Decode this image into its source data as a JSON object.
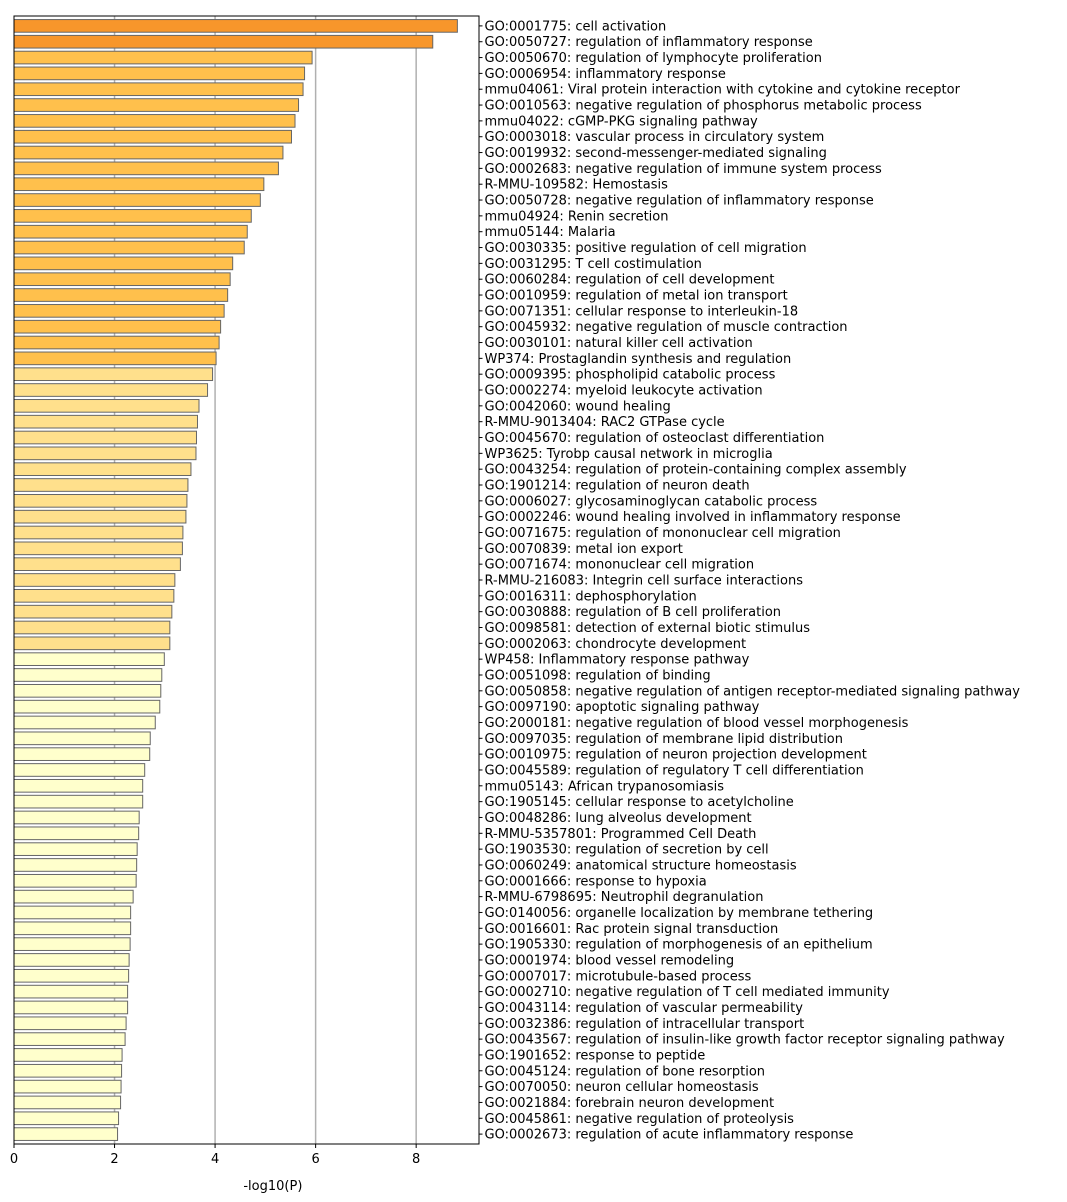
{
  "chart_data": {
    "type": "bar",
    "orientation": "horizontal",
    "xlabel": "-log10(P)",
    "ylabel": "",
    "title": "",
    "xlim": [
      0,
      9.25
    ],
    "xticks": [
      0,
      2,
      4,
      6,
      8
    ],
    "grid": "vertical-major",
    "legend": "none",
    "bar_edge_color": "#666666",
    "color_levels": {
      "top": "#F7962B",
      "high": "#FFC04C",
      "mid": "#FFE08C",
      "low": "#FFFFCC"
    },
    "categories": [
      "GO:0001775: cell activation",
      "GO:0050727: regulation of inflammatory response",
      "GO:0050670: regulation of lymphocyte proliferation",
      "GO:0006954: inflammatory response",
      "mmu04061: Viral protein interaction with cytokine and cytokine receptor",
      "GO:0010563: negative regulation of phosphorus metabolic process",
      "mmu04022: cGMP-PKG signaling pathway",
      "GO:0003018: vascular process in circulatory system",
      "GO:0019932: second-messenger-mediated signaling",
      "GO:0002683: negative regulation of immune system process",
      "R-MMU-109582: Hemostasis",
      "GO:0050728: negative regulation of inflammatory response",
      "mmu04924: Renin secretion",
      "mmu05144: Malaria",
      "GO:0030335: positive regulation of cell migration",
      "GO:0031295: T cell costimulation",
      "GO:0060284: regulation of cell development",
      "GO:0010959: regulation of metal ion transport",
      "GO:0071351: cellular response to interleukin-18",
      "GO:0045932: negative regulation of muscle contraction",
      "GO:0030101: natural killer cell activation",
      "WP374: Prostaglandin synthesis and regulation",
      "GO:0009395: phospholipid catabolic process",
      "GO:0002274: myeloid leukocyte activation",
      "GO:0042060: wound healing",
      "R-MMU-9013404: RAC2 GTPase cycle",
      "GO:0045670: regulation of osteoclast differentiation",
      "WP3625: Tyrobp causal network in microglia",
      "GO:0043254: regulation of protein-containing complex assembly",
      "GO:1901214: regulation of neuron death",
      "GO:0006027: glycosaminoglycan catabolic process",
      "GO:0002246: wound healing involved in inflammatory response",
      "GO:0071675: regulation of mononuclear cell migration",
      "GO:0070839: metal ion export",
      "GO:0071674: mononuclear cell migration",
      "R-MMU-216083: Integrin cell surface interactions",
      "GO:0016311: dephosphorylation",
      "GO:0030888: regulation of B cell proliferation",
      "GO:0098581: detection of external biotic stimulus",
      "GO:0002063: chondrocyte development",
      "WP458: Inflammatory response pathway",
      "GO:0051098: regulation of binding",
      "GO:0050858: negative regulation of antigen receptor-mediated signaling pathway",
      "GO:0097190: apoptotic signaling pathway",
      "GO:2000181: negative regulation of blood vessel morphogenesis",
      "GO:0097035: regulation of membrane lipid distribution",
      "GO:0010975: regulation of neuron projection development",
      "GO:0045589: regulation of regulatory T cell differentiation",
      "mmu05143: African trypanosomiasis",
      "GO:1905145: cellular response to acetylcholine",
      "GO:0048286: lung alveolus development",
      "R-MMU-5357801: Programmed Cell Death",
      "GO:1903530: regulation of secretion by cell",
      "GO:0060249: anatomical structure homeostasis",
      "GO:0001666: response to hypoxia",
      "R-MMU-6798695: Neutrophil degranulation",
      "GO:0140056: organelle localization by membrane tethering",
      "GO:0016601: Rac protein signal transduction",
      "GO:1905330: regulation of morphogenesis of an epithelium",
      "GO:0001974: blood vessel remodeling",
      "GO:0007017: microtubule-based process",
      "GO:0002710: negative regulation of T cell mediated immunity",
      "GO:0043114: regulation of vascular permeability",
      "GO:0032386: regulation of intracellular transport",
      "GO:0043567: regulation of insulin-like growth factor receptor signaling pathway",
      "GO:1901652: response to peptide",
      "GO:0045124: regulation of bone resorption",
      "GO:0070050: neuron cellular homeostasis",
      "GO:0021884: forebrain neuron development",
      "GO:0045861: negative regulation of proteolysis",
      "GO:0002673: regulation of acute inflammatory response"
    ],
    "values": [
      8.82,
      8.33,
      5.93,
      5.78,
      5.75,
      5.66,
      5.59,
      5.52,
      5.35,
      5.26,
      4.97,
      4.9,
      4.72,
      4.64,
      4.58,
      4.35,
      4.3,
      4.25,
      4.18,
      4.11,
      4.08,
      4.02,
      3.95,
      3.85,
      3.68,
      3.65,
      3.63,
      3.62,
      3.52,
      3.46,
      3.44,
      3.42,
      3.36,
      3.35,
      3.31,
      3.2,
      3.18,
      3.14,
      3.1,
      3.1,
      2.99,
      2.94,
      2.92,
      2.9,
      2.81,
      2.71,
      2.7,
      2.6,
      2.56,
      2.56,
      2.49,
      2.48,
      2.45,
      2.44,
      2.43,
      2.37,
      2.32,
      2.32,
      2.31,
      2.29,
      2.28,
      2.26,
      2.26,
      2.23,
      2.21,
      2.15,
      2.14,
      2.13,
      2.12,
      2.08,
      2.06
    ]
  }
}
